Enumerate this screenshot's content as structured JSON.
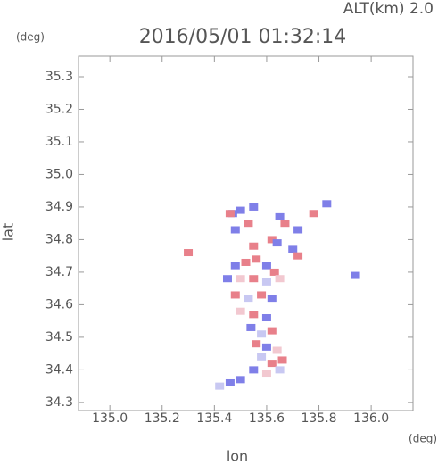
{
  "chart_data": {
    "type": "scatter",
    "title": "2016/05/01 01:32:14",
    "annotation": "ALT(km) 2.0",
    "y_unit": "(deg)",
    "x_unit": "(deg)",
    "xlabel": "lon",
    "ylabel": "lat",
    "xlim": [
      134.88,
      136.16
    ],
    "ylim": [
      34.275,
      35.363
    ],
    "xticks": [
      {
        "value": 135,
        "label": "135.0"
      },
      135.2,
      135.4,
      135.6,
      135.8,
      {
        "value": 136,
        "label": "136.0"
      }
    ],
    "yticks": [
      34.3,
      34.4,
      34.5,
      34.6,
      34.7,
      34.8,
      34.9,
      {
        "value": 35,
        "label": "35.0"
      },
      35.1,
      35.2,
      35.3
    ],
    "x": [
      135.47,
      135.5,
      135.55,
      135.46,
      135.53,
      135.48,
      135.65,
      135.67,
      135.72,
      135.78,
      135.83,
      135.62,
      135.64,
      135.7,
      135.72,
      135.55,
      135.3,
      135.94,
      135.48,
      135.52,
      135.56,
      135.6,
      135.63,
      135.45,
      135.5,
      135.55,
      135.6,
      135.65,
      135.48,
      135.53,
      135.58,
      135.62,
      135.5,
      135.55,
      135.6,
      135.54,
      135.58,
      135.62,
      135.56,
      135.6,
      135.64,
      135.58,
      135.62,
      135.66,
      135.55,
      135.6,
      135.65,
      135.5,
      135.46,
      135.42
    ],
    "values": [
      34.88,
      34.89,
      34.9,
      34.88,
      34.85,
      34.83,
      34.87,
      34.85,
      34.83,
      34.88,
      34.91,
      34.8,
      34.79,
      34.77,
      34.75,
      34.78,
      34.76,
      34.69,
      34.72,
      34.73,
      34.74,
      34.72,
      34.7,
      34.68,
      34.68,
      34.68,
      34.67,
      34.68,
      34.63,
      34.62,
      34.63,
      34.62,
      34.58,
      34.57,
      34.56,
      34.53,
      34.51,
      34.52,
      34.48,
      34.47,
      34.46,
      34.44,
      34.42,
      34.43,
      34.4,
      34.39,
      34.4,
      34.37,
      34.36,
      34.35
    ],
    "colors": [
      "#7f7fe8",
      "#7f7fe8",
      "#7f7fe8",
      "#e8808a",
      "#e8808a",
      "#7f7fe8",
      "#7f7fe8",
      "#e8808a",
      "#7f7fe8",
      "#e8808a",
      "#7f7fe8",
      "#e8808a",
      "#7f7fe8",
      "#7f7fe8",
      "#e8808a",
      "#e8808a",
      "#e8808a",
      "#7f7fe8",
      "#7f7fe8",
      "#e8808a",
      "#e8808a",
      "#7f7fe8",
      "#e8808a",
      "#7f7fe8",
      "#f2c8d0",
      "#e8808a",
      "#c8c8f2",
      "#f2c8d0",
      "#e8808a",
      "#c8c8f2",
      "#e8808a",
      "#7f7fe8",
      "#f2c8d0",
      "#e8808a",
      "#7f7fe8",
      "#7f7fe8",
      "#c8c8f2",
      "#e8808a",
      "#e8808a",
      "#7f7fe8",
      "#f2c8d0",
      "#c8c8f2",
      "#e8808a",
      "#e8808a",
      "#7f7fe8",
      "#f2c8d0",
      "#c8c8f2",
      "#7f7fe8",
      "#7f7fe8",
      "#c8c8f2"
    ]
  }
}
